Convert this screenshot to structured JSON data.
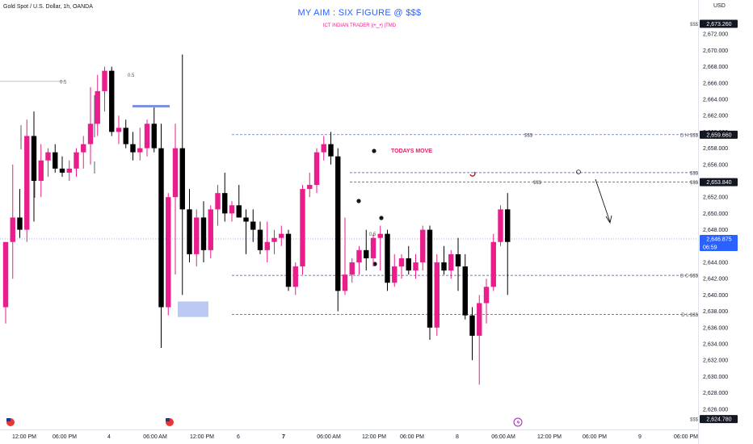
{
  "header": {
    "symbol": "Gold Spot / U.S. Dollar, 1h, OANDA",
    "watermark_title": "MY AIM : SIX FIGURE @ $$$",
    "watermark_subtitle": "ICT INDIAN TRADER |(•‿•) |TMD",
    "currency": "USD"
  },
  "colors": {
    "bull": "#e91e8c",
    "bear": "#000000",
    "level_line": "#3f51b5",
    "accent": "#2962ff",
    "marker": "#b71c1c"
  },
  "chart_data": {
    "type": "candlestick",
    "ylim": [
      2624.0,
      2674.0
    ],
    "y_ticks": [
      "2,626.000",
      "2,628.000",
      "2,630.000",
      "2,632.000",
      "2,634.000",
      "2,636.000",
      "2,638.000",
      "2,640.000",
      "2,642.000",
      "2,644.000",
      "2,646.000",
      "2,648.000",
      "2,650.000",
      "2,652.000",
      "2,654.000",
      "2,656.000",
      "2,658.000",
      "2,660.000",
      "2,662.000",
      "2,664.000",
      "2,666.000",
      "2,668.000",
      "2,670.000",
      "2,672.000"
    ],
    "x_ticks": [
      "12:00 PM",
      "06:00 PM",
      "4",
      "06:00 AM",
      "12:00 PM",
      "6",
      "7",
      "06:00 AM",
      "12:00 PM",
      "06:00 PM",
      "8",
      "06:00 AM",
      "12:00 PM",
      "06:00 PM",
      "9",
      "06:00 PM"
    ],
    "x_ticks_bold": [
      "7"
    ],
    "price_tags": [
      {
        "value": "2,673.260",
        "price": 2673.26,
        "style": "dark"
      },
      {
        "value": "2,659.660",
        "price": 2659.66,
        "style": "dark"
      },
      {
        "value": "2,653.840",
        "price": 2653.84,
        "style": "dark"
      },
      {
        "value": "2,646.875",
        "countdown": "06:59",
        "price": 2646.875,
        "style": "blue"
      },
      {
        "value": "2,624.780",
        "price": 2624.78,
        "style": "dark"
      }
    ],
    "levels": [
      {
        "label": "D H $$$",
        "price": 2659.66
      },
      {
        "label": "$$$",
        "price": 2655.0
      },
      {
        "label": "$$$",
        "price": 2653.84
      },
      {
        "label": "D C $$$",
        "price": 2642.4
      },
      {
        "label": "D L $$$",
        "price": 2637.6
      }
    ],
    "annotations": {
      "todays_move": "TODAYS MOVE",
      "half_labels": [
        "0.5",
        "0.5",
        "0.5"
      ],
      "liquidity_label": "$$$",
      "top_label": "$$$",
      "bottom_label": "$$$"
    },
    "candles": [
      {
        "o": 2638.5,
        "h": 2646.5,
        "l": 2636.5,
        "c": 2646.5
      },
      {
        "o": 2646.5,
        "h": 2656.0,
        "l": 2642.0,
        "c": 2649.5
      },
      {
        "o": 2649.5,
        "h": 2653.0,
        "l": 2647.0,
        "c": 2648.0
      },
      {
        "o": 2648.0,
        "h": 2661.5,
        "l": 2646.5,
        "c": 2659.5
      },
      {
        "o": 2659.5,
        "h": 2662.5,
        "l": 2649.0,
        "c": 2654.0
      },
      {
        "o": 2654.0,
        "h": 2658.5,
        "l": 2652.0,
        "c": 2656.5
      },
      {
        "o": 2656.5,
        "h": 2658.0,
        "l": 2654.5,
        "c": 2657.5
      },
      {
        "o": 2657.5,
        "h": 2658.5,
        "l": 2655.0,
        "c": 2655.5
      },
      {
        "o": 2655.5,
        "h": 2657.0,
        "l": 2654.5,
        "c": 2655.0
      },
      {
        "o": 2655.0,
        "h": 2656.5,
        "l": 2654.0,
        "c": 2655.5
      },
      {
        "o": 2655.5,
        "h": 2658.0,
        "l": 2654.5,
        "c": 2657.5
      },
      {
        "o": 2657.5,
        "h": 2659.5,
        "l": 2655.5,
        "c": 2658.5
      },
      {
        "o": 2658.5,
        "h": 2665.5,
        "l": 2656.0,
        "c": 2661.0
      },
      {
        "o": 2661.0,
        "h": 2667.0,
        "l": 2659.5,
        "c": 2665.0
      },
      {
        "o": 2665.0,
        "h": 2668.0,
        "l": 2662.5,
        "c": 2667.5
      },
      {
        "o": 2667.5,
        "h": 2668.0,
        "l": 2659.5,
        "c": 2660.0
      },
      {
        "o": 2660.0,
        "h": 2662.0,
        "l": 2658.5,
        "c": 2660.5
      },
      {
        "o": 2660.5,
        "h": 2661.5,
        "l": 2658.0,
        "c": 2658.5
      },
      {
        "o": 2658.5,
        "h": 2660.0,
        "l": 2656.5,
        "c": 2657.5
      },
      {
        "o": 2657.5,
        "h": 2660.5,
        "l": 2656.5,
        "c": 2658.0
      },
      {
        "o": 2658.0,
        "h": 2661.5,
        "l": 2657.0,
        "c": 2661.0
      },
      {
        "o": 2661.0,
        "h": 2663.0,
        "l": 2657.5,
        "c": 2658.0
      },
      {
        "o": 2658.0,
        "h": 2661.0,
        "l": 2633.5,
        "c": 2638.5
      },
      {
        "o": 2638.5,
        "h": 2652.5,
        "l": 2637.5,
        "c": 2652.0
      },
      {
        "o": 2652.0,
        "h": 2661.0,
        "l": 2642.5,
        "c": 2658.0
      },
      {
        "o": 2658.0,
        "h": 2669.5,
        "l": 2640.0,
        "c": 2650.5
      },
      {
        "o": 2650.5,
        "h": 2653.0,
        "l": 2644.0,
        "c": 2645.0
      },
      {
        "o": 2645.0,
        "h": 2650.5,
        "l": 2643.5,
        "c": 2649.5
      },
      {
        "o": 2649.5,
        "h": 2651.5,
        "l": 2644.0,
        "c": 2645.5
      },
      {
        "o": 2645.5,
        "h": 2651.0,
        "l": 2644.5,
        "c": 2650.5
      },
      {
        "o": 2650.5,
        "h": 2653.5,
        "l": 2648.5,
        "c": 2652.5
      },
      {
        "o": 2652.5,
        "h": 2655.0,
        "l": 2649.0,
        "c": 2650.0
      },
      {
        "o": 2650.0,
        "h": 2651.5,
        "l": 2649.0,
        "c": 2651.0
      },
      {
        "o": 2651.0,
        "h": 2653.5,
        "l": 2649.5,
        "c": 2649.5
      },
      {
        "o": 2649.5,
        "h": 2650.5,
        "l": 2645.0,
        "c": 2649.0
      },
      {
        "o": 2649.0,
        "h": 2650.5,
        "l": 2646.5,
        "c": 2648.0
      },
      {
        "o": 2648.0,
        "h": 2649.0,
        "l": 2645.0,
        "c": 2645.5
      },
      {
        "o": 2645.5,
        "h": 2649.0,
        "l": 2644.0,
        "c": 2646.5
      },
      {
        "o": 2646.5,
        "h": 2648.0,
        "l": 2645.0,
        "c": 2647.0
      },
      {
        "o": 2647.0,
        "h": 2648.5,
        "l": 2646.0,
        "c": 2647.5
      },
      {
        "o": 2647.5,
        "h": 2648.0,
        "l": 2640.5,
        "c": 2641.0
      },
      {
        "o": 2641.0,
        "h": 2644.0,
        "l": 2640.0,
        "c": 2643.5
      },
      {
        "o": 2643.5,
        "h": 2653.5,
        "l": 2642.5,
        "c": 2653.0
      },
      {
        "o": 2653.0,
        "h": 2655.0,
        "l": 2652.0,
        "c": 2653.5
      },
      {
        "o": 2653.5,
        "h": 2658.0,
        "l": 2652.5,
        "c": 2657.5
      },
      {
        "o": 2657.5,
        "h": 2659.5,
        "l": 2656.5,
        "c": 2658.5
      },
      {
        "o": 2658.5,
        "h": 2660.0,
        "l": 2656.0,
        "c": 2657.0
      },
      {
        "o": 2657.0,
        "h": 2658.0,
        "l": 2638.0,
        "c": 2640.5
      },
      {
        "o": 2640.5,
        "h": 2649.5,
        "l": 2640.0,
        "c": 2642.5
      },
      {
        "o": 2642.5,
        "h": 2644.5,
        "l": 2641.5,
        "c": 2644.0
      },
      {
        "o": 2644.0,
        "h": 2646.0,
        "l": 2642.5,
        "c": 2645.5
      },
      {
        "o": 2645.5,
        "h": 2648.0,
        "l": 2643.0,
        "c": 2644.5
      },
      {
        "o": 2644.5,
        "h": 2647.5,
        "l": 2643.5,
        "c": 2647.0
      },
      {
        "o": 2647.0,
        "h": 2648.5,
        "l": 2643.0,
        "c": 2647.5
      },
      {
        "o": 2647.5,
        "h": 2648.0,
        "l": 2640.5,
        "c": 2641.5
      },
      {
        "o": 2641.5,
        "h": 2645.0,
        "l": 2641.0,
        "c": 2643.5
      },
      {
        "o": 2643.5,
        "h": 2645.0,
        "l": 2642.0,
        "c": 2644.5
      },
      {
        "o": 2644.5,
        "h": 2646.0,
        "l": 2642.5,
        "c": 2643.0
      },
      {
        "o": 2643.0,
        "h": 2645.0,
        "l": 2642.0,
        "c": 2644.0
      },
      {
        "o": 2644.0,
        "h": 2648.5,
        "l": 2643.0,
        "c": 2648.0
      },
      {
        "o": 2648.0,
        "h": 2648.5,
        "l": 2634.5,
        "c": 2636.0
      },
      {
        "o": 2636.0,
        "h": 2645.0,
        "l": 2635.0,
        "c": 2644.0
      },
      {
        "o": 2644.0,
        "h": 2646.0,
        "l": 2642.5,
        "c": 2643.0
      },
      {
        "o": 2643.0,
        "h": 2645.5,
        "l": 2642.0,
        "c": 2645.0
      },
      {
        "o": 2645.0,
        "h": 2647.0,
        "l": 2640.5,
        "c": 2643.5
      },
      {
        "o": 2643.5,
        "h": 2645.0,
        "l": 2637.0,
        "c": 2637.5
      },
      {
        "o": 2637.5,
        "h": 2638.5,
        "l": 2632.0,
        "c": 2635.0
      },
      {
        "o": 2635.0,
        "h": 2640.0,
        "l": 2629.0,
        "c": 2639.0
      },
      {
        "o": 2639.0,
        "h": 2642.0,
        "l": 2636.5,
        "c": 2641.0
      },
      {
        "o": 2641.0,
        "h": 2647.5,
        "l": 2640.5,
        "c": 2646.5
      },
      {
        "o": 2646.5,
        "h": 2651.0,
        "l": 2646.0,
        "c": 2650.5
      },
      {
        "o": 2650.5,
        "h": 2652.5,
        "l": 2640.0,
        "c": 2646.5
      }
    ]
  },
  "sessions": [
    "flag-icon-us",
    "flag-icon-us",
    "lightning-icon"
  ]
}
